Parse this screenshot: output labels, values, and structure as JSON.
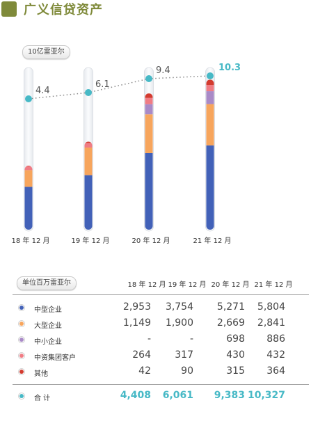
{
  "title": "广义信贷资产",
  "chart_data": {
    "type": "bar",
    "stacked": true,
    "unit": "10亿雷亚尔",
    "categories": [
      "18 年 12 月",
      "19 年 12 月",
      "20 年 12 月",
      "21 年 12 月"
    ],
    "totals": [
      4.4,
      6.1,
      9.4,
      10.3
    ],
    "ylim": [
      0,
      10.3
    ],
    "series": [
      {
        "name": "中型企业",
        "color": "#4261b8",
        "values": [
          2.953,
          3.754,
          5.271,
          5.804
        ]
      },
      {
        "name": "大型企业",
        "color": "#f7a55c",
        "values": [
          1.149,
          1.9,
          2.669,
          2.841
        ]
      },
      {
        "name": "中小企业",
        "color": "#a98ac7",
        "values": [
          0,
          0,
          0.698,
          0.886
        ]
      },
      {
        "name": "中资集团客户",
        "color": "#f07c84",
        "values": [
          0.264,
          0.317,
          0.43,
          0.432
        ]
      },
      {
        "name": "其他",
        "color": "#d33b2f",
        "values": [
          0.042,
          0.09,
          0.315,
          0.364
        ]
      }
    ],
    "line_color": "#47b9c6"
  },
  "table": {
    "unit": "单位百万雷亚尔",
    "headers": [
      "18 年 12 月",
      "19 年 12 月",
      "20 年 12 月",
      "21 年 12 月"
    ],
    "rows": [
      {
        "label": "中型企业",
        "color": "#4261b8",
        "values": [
          "2,953",
          "3,754",
          "5,271",
          "5,804"
        ]
      },
      {
        "label": "大型企业",
        "color": "#f7a55c",
        "values": [
          "1,149",
          "1,900",
          "2,669",
          "2,841"
        ]
      },
      {
        "label": "中小企业",
        "color": "#a98ac7",
        "values": [
          "-",
          "-",
          "698",
          "886"
        ]
      },
      {
        "label": "中资集团客户",
        "color": "#f07c84",
        "values": [
          "264",
          "317",
          "430",
          "432"
        ]
      },
      {
        "label": "其他",
        "color": "#d33b2f",
        "values": [
          "42",
          "90",
          "315",
          "364"
        ]
      }
    ],
    "total": {
      "label": "合 计",
      "color": "#47b9c6",
      "values": [
        "4,408",
        "6,061",
        "9,383",
        "10,327"
      ]
    }
  }
}
